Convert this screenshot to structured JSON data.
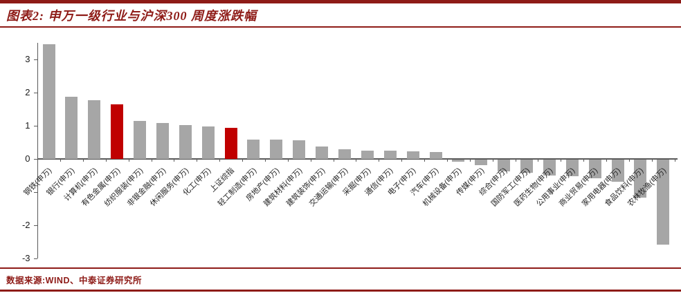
{
  "page": {
    "title": "图表2: 申万一级行业与沪深300 周度涨跌幅",
    "source_note": "数据来源:WIND、中泰证券研究所"
  },
  "colors": {
    "accent_red": "#8e1b17",
    "bar_gray": "#a6a6a6",
    "bar_highlight_red": "#c00000",
    "axis_gray": "#595959"
  },
  "chart_data": {
    "type": "bar",
    "title": "申万一级行业与沪深300 周度涨跌幅",
    "categories": [
      "钢铁(申万)",
      "银行(申万)",
      "计算机(申万)",
      "有色金属(申万)",
      "纺织服装(申万)",
      "非银金融(申万)",
      "休闲服务(申万)",
      "化工(申万)",
      "上证综指",
      "轻工制造(申万)",
      "房地产(申万)",
      "建筑材料(申万)",
      "建筑装饰(申万)",
      "交通运输(申万)",
      "采掘(申万)",
      "通信(申万)",
      "电子(申万)",
      "汽车(申万)",
      "机械设备(申万)",
      "传媒(申万)",
      "综合(申万)",
      "国防军工(申万)",
      "医药生物(申万)",
      "公用事业(申万)",
      "商业贸易(申万)",
      "家用电器(申万)",
      "食品饮料(申万)",
      "农林牧渔(申万)"
    ],
    "values": [
      3.45,
      1.87,
      1.77,
      1.65,
      1.15,
      1.08,
      1.02,
      0.98,
      0.94,
      0.59,
      0.58,
      0.57,
      0.38,
      0.3,
      0.26,
      0.24,
      0.22,
      0.2,
      -0.08,
      -0.18,
      -0.36,
      -0.4,
      -0.48,
      -0.52,
      -0.58,
      -0.67,
      -1.15,
      -2.57
    ],
    "highlight_indices": [
      3,
      8
    ],
    "ylim": [
      -3,
      3.5
    ],
    "ytick_values": [
      3,
      2,
      1,
      0,
      -1,
      -2,
      -3
    ],
    "ytick_labels_visible": [
      "3",
      "2",
      "1",
      "0",
      "-2",
      "-3"
    ],
    "xlabel": "",
    "ylabel": "",
    "grid": false,
    "legend": false
  }
}
